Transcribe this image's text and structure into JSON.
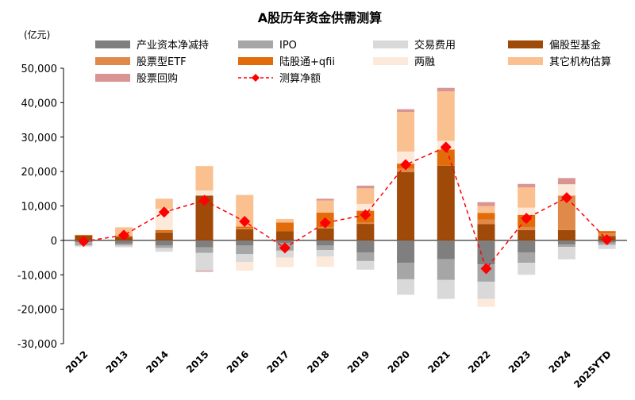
{
  "chart_data": {
    "type": "bar",
    "title": "A股历年资金供需测算",
    "ylabel": "(亿元)",
    "ylim": [
      -30000,
      50000
    ],
    "yticks": [
      50000,
      40000,
      30000,
      20000,
      10000,
      0,
      -10000,
      -20000,
      -30000
    ],
    "ytick_labels": [
      "50,000",
      "40,000",
      "30,000",
      "20,000",
      "10,000",
      "0",
      "-10,000",
      "-20,000",
      "-30,000"
    ],
    "categories": [
      "2012",
      "2013",
      "2014",
      "2015",
      "2016",
      "2017",
      "2018",
      "2019",
      "2020",
      "2021",
      "2022",
      "2023",
      "2024",
      "2025YTD"
    ],
    "grid": false,
    "legend_position": "top",
    "series": [
      {
        "name": "产业资本净减持",
        "type": "bar",
        "color": "#7f7f7f",
        "values": [
          -500,
          -1000,
          -1500,
          -2000,
          -1500,
          -800,
          -1500,
          -3500,
          -6500,
          -5500,
          -7000,
          -3500,
          -1200,
          -600
        ]
      },
      {
        "name": "IPO",
        "type": "bar",
        "color": "#a6a6a6",
        "values": [
          -1000,
          -500,
          -700,
          -1600,
          -2500,
          -2200,
          -1300,
          -2500,
          -4800,
          -6000,
          -5000,
          -3000,
          -700,
          -700
        ]
      },
      {
        "name": "交易费用",
        "type": "bar",
        "color": "#d9d9d9",
        "values": [
          -300,
          -500,
          -1100,
          -5200,
          -2300,
          -2000,
          -1900,
          -2500,
          -4500,
          -5500,
          -5000,
          -3500,
          -3600,
          -1200
        ]
      },
      {
        "name": "偏股型基金",
        "type": "bar",
        "color": "#a04a0a",
        "values": [
          1400,
          1000,
          2300,
          13000,
          3200,
          2700,
          3500,
          4800,
          19800,
          21700,
          4700,
          3000,
          3000,
          1300
        ]
      },
      {
        "name": "股票型ETF",
        "type": "bar",
        "color": "#e08a4a",
        "values": [
          0,
          0,
          200,
          0,
          300,
          0,
          300,
          300,
          1000,
          0,
          1300,
          900,
          10000,
          700
        ]
      },
      {
        "name": "陆股通+qfii",
        "type": "bar",
        "color": "#e36c0a",
        "values": [
          200,
          300,
          500,
          0,
          500,
          2500,
          4300,
          3500,
          1500,
          4700,
          2000,
          3500,
          0,
          700
        ]
      },
      {
        "name": "两融",
        "type": "bar",
        "color": "#fde9d9",
        "values": [
          -200,
          0,
          6200,
          1500,
          -2500,
          -2800,
          -3000,
          2000,
          3500,
          2500,
          -2300,
          2100,
          3300,
          0
        ]
      },
      {
        "name": "其它机构估算",
        "type": "bar",
        "color": "#fac090",
        "values": [
          0,
          2500,
          2900,
          7100,
          9200,
          1000,
          3500,
          4500,
          11500,
          14400,
          2000,
          5900,
          0,
          0
        ]
      },
      {
        "name": "股票回购",
        "type": "bar",
        "color": "#d99594",
        "values": [
          0,
          0,
          0,
          -300,
          0,
          0,
          500,
          800,
          800,
          1000,
          1100,
          1000,
          1800,
          0
        ]
      },
      {
        "name": "测算净额",
        "type": "line",
        "color": "#ff0000",
        "style": "dashed",
        "marker": "diamond",
        "values": [
          -300,
          1500,
          8200,
          11600,
          5500,
          -2200,
          5100,
          7400,
          22000,
          27100,
          -8200,
          6400,
          12400,
          200
        ]
      }
    ]
  }
}
